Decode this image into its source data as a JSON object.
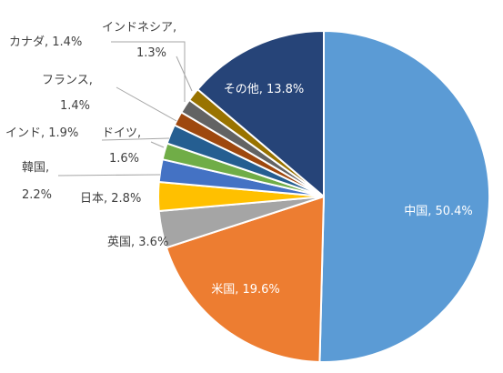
{
  "chart_data": {
    "type": "pie",
    "title": "",
    "start": "12 o'clock",
    "direction": "clockwise",
    "slices": [
      {
        "label": "中国",
        "value": 50.4,
        "color": "#5b9bd5",
        "text": "中国, 50.4%"
      },
      {
        "label": "米国",
        "value": 19.6,
        "color": "#ed7d31",
        "text": "米国, 19.6%"
      },
      {
        "label": "英国",
        "value": 3.6,
        "color": "#a5a5a5",
        "text": "英国, 3.6%"
      },
      {
        "label": "日本",
        "value": 2.8,
        "color": "#ffc000",
        "text": "日本, 2.8%"
      },
      {
        "label": "韓国",
        "value": 2.2,
        "color": "#4472c4",
        "text": [
          "韓国,",
          "2.2%"
        ]
      },
      {
        "label": "ドイツ",
        "value": 1.6,
        "color": "#70ad47",
        "text": [
          "ドイツ,",
          "1.6%"
        ]
      },
      {
        "label": "インド",
        "value": 1.9,
        "color": "#255e91",
        "text": "インド, 1.9%"
      },
      {
        "label": "フランス",
        "value": 1.4,
        "color": "#9e480e",
        "text": [
          "フランス,",
          "1.4%"
        ]
      },
      {
        "label": "カナダ",
        "value": 1.4,
        "color": "#636363",
        "text": "カナダ, 1.4%"
      },
      {
        "label": "インドネシア",
        "value": 1.3,
        "color": "#997300",
        "text": [
          "インドネシア,",
          "1.3%"
        ]
      },
      {
        "label": "その他",
        "value": 13.8,
        "color": "#264478",
        "text": "その他, 13.8%"
      }
    ]
  }
}
